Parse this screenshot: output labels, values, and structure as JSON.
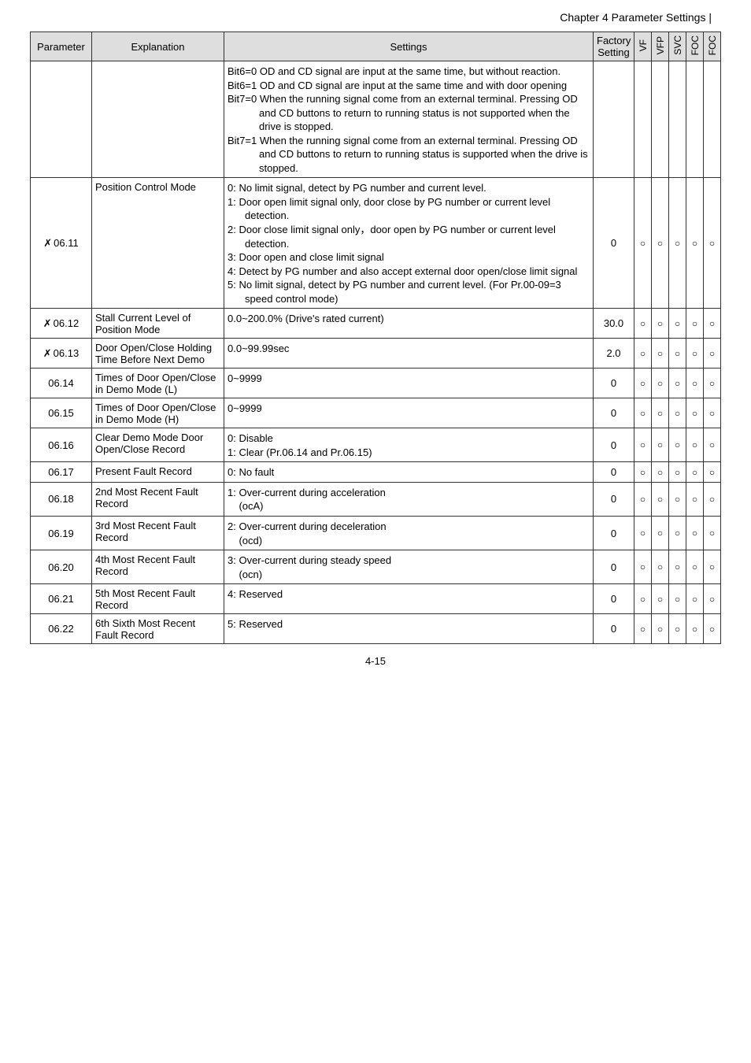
{
  "pageHeader": "Chapter 4 Parameter Settings |",
  "pageFooter": "4-15",
  "table": {
    "headers": {
      "parameter": "Parameter",
      "explanation": "Explanation",
      "settings": "Settings",
      "factory": "Factory Setting",
      "flags": [
        "VF",
        "VFP",
        "SVC",
        "FOC",
        "FOC"
      ]
    },
    "flag_symbol": "○"
  },
  "rows": {
    "r0": {
      "settings_lines": [
        "Bit6=0 OD and CD signal are input at the same time, but without reaction.",
        "Bit6=1 OD and CD signal are input at the same time and with door opening",
        "Bit7=0 When the running signal come from an external terminal. Pressing OD and CD buttons to return to running status is not supported when the drive is stopped.",
        "Bit7=1 When the running signal come from an external terminal. Pressing OD and CD buttons to return to running status is supported when the drive is stopped."
      ]
    },
    "r1": {
      "param": "06.11",
      "pencil": "✗",
      "explain": "Position Control Mode",
      "settings_lines": [
        "0: No limit signal, detect by PG number and current level.",
        "1: Door open limit signal only, door close by PG number or current level detection.",
        "2: Door close limit signal only，door open by PG number or current level detection.",
        "3: Door open and close limit signal",
        "4: Detect by PG number and also accept external door open/close limit signal",
        "5: No limit signal, detect by PG number and current level. (For Pr.00-09=3 speed control mode)"
      ],
      "factory": "0",
      "flags": [
        "○",
        "○",
        "○",
        "○",
        "○"
      ]
    },
    "r2": {
      "param": "06.12",
      "pencil": "✗",
      "explain": "Stall Current Level of Position Mode",
      "settings": "0.0~200.0% (Drive's rated current)",
      "factory": "30.0",
      "flags": [
        "○",
        "○",
        "○",
        "○",
        "○"
      ]
    },
    "r3": {
      "param": "06.13",
      "pencil": "✗",
      "explain": "Door Open/Close Holding Time Before Next Demo",
      "settings": "0.0~99.99sec",
      "factory": "2.0",
      "flags": [
        "○",
        "○",
        "○",
        "○",
        "○"
      ]
    },
    "r4": {
      "param": "06.14",
      "explain": "Times of Door Open/Close in Demo Mode (L)",
      "settings": "0~9999",
      "factory": "0",
      "flags": [
        "○",
        "○",
        "○",
        "○",
        "○"
      ]
    },
    "r5": {
      "param": "06.15",
      "explain": "Times of Door Open/Close in Demo Mode (H)",
      "settings": "0~9999",
      "factory": "0",
      "flags": [
        "○",
        "○",
        "○",
        "○",
        "○"
      ]
    },
    "r6": {
      "param": "06.16",
      "explain": "Clear Demo Mode Door Open/Close Record",
      "settings_lines": [
        "0: Disable",
        "1: Clear (Pr.06.14 and Pr.06.15)"
      ],
      "factory": "0",
      "flags": [
        "○",
        "○",
        "○",
        "○",
        "○"
      ]
    },
    "r7": {
      "param": "06.17",
      "explain": "Present Fault Record",
      "settings": "0: No fault",
      "factory": "0",
      "flags": [
        "○",
        "○",
        "○",
        "○",
        "○"
      ]
    },
    "r8": {
      "param": "06.18",
      "explain": "2nd Most Recent Fault Record",
      "settings_lines": [
        "1: Over-current during acceleration",
        "    (ocA)"
      ],
      "factory": "0",
      "flags": [
        "○",
        "○",
        "○",
        "○",
        "○"
      ]
    },
    "r9": {
      "param": "06.19",
      "explain": "3rd Most Recent Fault Record",
      "settings_lines": [
        "2: Over-current during deceleration",
        "    (ocd)"
      ],
      "factory": "0",
      "flags": [
        "○",
        "○",
        "○",
        "○",
        "○"
      ]
    },
    "r10": {
      "param": "06.20",
      "explain": "4th Most Recent Fault Record",
      "settings_lines": [
        "3: Over-current during steady speed",
        "    (ocn)"
      ],
      "factory": "0",
      "flags": [
        "○",
        "○",
        "○",
        "○",
        "○"
      ]
    },
    "r11": {
      "param": "06.21",
      "explain": "5th Most Recent Fault Record",
      "settings": "4: Reserved",
      "factory": "0",
      "flags": [
        "○",
        "○",
        "○",
        "○",
        "○"
      ]
    },
    "r12": {
      "param": "06.22",
      "explain": "6th Sixth Most Recent Fault Record",
      "settings": "5: Reserved",
      "factory": "0",
      "flags": [
        "○",
        "○",
        "○",
        "○",
        "○"
      ]
    }
  }
}
